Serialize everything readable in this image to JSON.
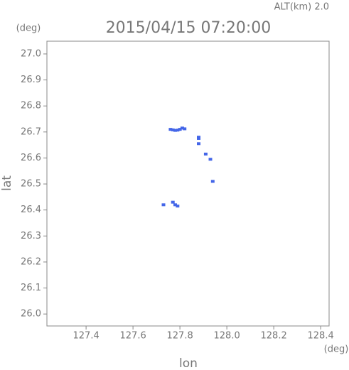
{
  "chart_data": {
    "type": "scatter",
    "title": "2015/04/15 07:20:00",
    "subtitle": "ALT(km) 2.0",
    "x_label": "lon",
    "y_label": "lat",
    "x_unit": "(deg)",
    "y_unit": "(deg)",
    "xlim": [
      127.233,
      128.436
    ],
    "ylim": [
      25.954,
      27.049
    ],
    "xticks": [
      127.4,
      127.6,
      127.8,
      {
        "value": 128.0,
        "label": "128.0"
      },
      128.2,
      128.4
    ],
    "yticks": [
      {
        "value": 26.0,
        "label": "26.0"
      },
      26.1,
      26.2,
      26.3,
      26.4,
      26.5,
      26.6,
      26.7,
      26.8,
      26.9,
      {
        "value": 27.0,
        "label": "27.0"
      }
    ],
    "series": [
      {
        "color": "#4466e8",
        "x": [
          127.76,
          127.77,
          127.78,
          127.79,
          127.8,
          127.81,
          127.82,
          127.88,
          127.88,
          127.88,
          127.91,
          127.93,
          127.94,
          127.73,
          127.77,
          127.78,
          127.79
        ],
        "values": [
          26.71,
          26.708,
          26.706,
          26.707,
          26.71,
          26.715,
          26.712,
          26.68,
          26.675,
          26.655,
          26.615,
          26.595,
          26.51,
          26.42,
          26.43,
          26.42,
          26.415
        ]
      }
    ]
  }
}
